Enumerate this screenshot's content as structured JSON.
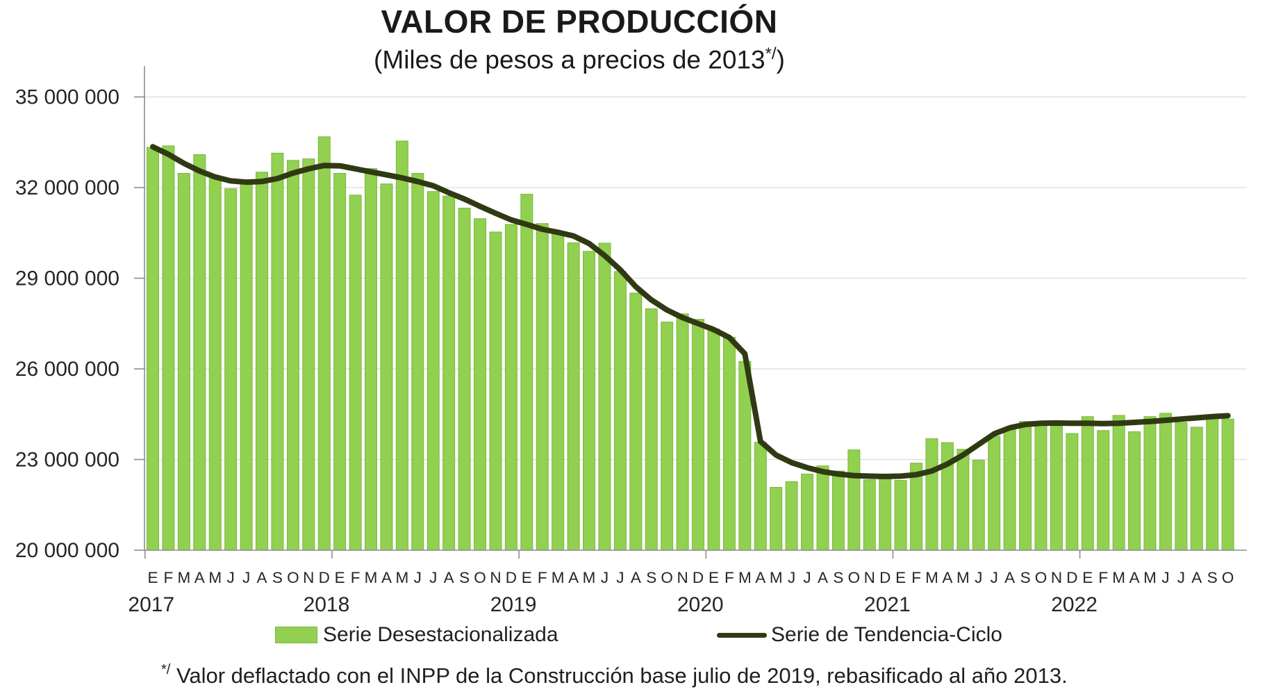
{
  "title": "VALOR DE PRODUCCIÓN",
  "subtitle": {
    "prefix": "(Miles de pesos a precios de 2013",
    "sup": "*/",
    "suffix": ")"
  },
  "footnote": {
    "sup": "*/",
    "text": " Valor deflactado con el INPP de la Construcción base julio de 2019, rebasificado al año 2013."
  },
  "colors": {
    "bar_fill": "#92d050",
    "bar_stroke": "#7ab63e",
    "trend_line": "#2f3a12",
    "gridline": "#dcdcdc",
    "axis": "#8c8c8c",
    "text": "#262626"
  },
  "chart_data": {
    "type": "bar",
    "title": "VALOR DE PRODUCCIÓN",
    "subtitle": "(Miles de pesos a precios de 2013*/)",
    "ylabel": "Miles de pesos",
    "ylim": [
      20000000,
      36030000
    ],
    "grid": true,
    "legend_position": "bottom",
    "yticks": [
      {
        "value": 35000000,
        "label": "35 000 000"
      },
      {
        "value": 32000000,
        "label": "32 000 000"
      },
      {
        "value": 29000000,
        "label": "29 000 000"
      },
      {
        "value": 26000000,
        "label": "26 000 000"
      },
      {
        "value": 23000000,
        "label": "23 000 000"
      },
      {
        "value": 20000000,
        "label": "20 000 000"
      }
    ],
    "years": [
      {
        "label": "2017",
        "months": [
          "E",
          "F",
          "M",
          "A",
          "M",
          "J",
          "J",
          "A",
          "S",
          "O",
          "N",
          "D"
        ]
      },
      {
        "label": "2018",
        "months": [
          "E",
          "F",
          "M",
          "A",
          "M",
          "J",
          "J",
          "A",
          "S",
          "O",
          "N",
          "D"
        ]
      },
      {
        "label": "2019",
        "months": [
          "E",
          "F",
          "M",
          "A",
          "M",
          "J",
          "J",
          "A",
          "S",
          "O",
          "N",
          "D"
        ]
      },
      {
        "label": "2020",
        "months": [
          "E",
          "F",
          "M",
          "A",
          "M",
          "J",
          "J",
          "A",
          "S",
          "O",
          "N",
          "D"
        ]
      },
      {
        "label": "2021",
        "months": [
          "E",
          "F",
          "M",
          "A",
          "M",
          "J",
          "J",
          "A",
          "S",
          "O",
          "N",
          "D"
        ]
      },
      {
        "label": "2022",
        "months": [
          "E",
          "F",
          "M",
          "A",
          "M",
          "J",
          "J",
          "A",
          "S",
          "O"
        ]
      }
    ],
    "series": [
      {
        "name": "Serie Desestacionalizada",
        "type": "bar",
        "color": "#92d050",
        "values": [
          33330000,
          33380000,
          32470000,
          33090000,
          32350000,
          31960000,
          32230000,
          32510000,
          33140000,
          32900000,
          32950000,
          33680000,
          32470000,
          31750000,
          32630000,
          32120000,
          33540000,
          32470000,
          31870000,
          31720000,
          31320000,
          30970000,
          30530000,
          30780000,
          31780000,
          30810000,
          30500000,
          30170000,
          29890000,
          30160000,
          29220000,
          28510000,
          27990000,
          27550000,
          27820000,
          27640000,
          27320000,
          27050000,
          26250000,
          23570000,
          22080000,
          22270000,
          22520000,
          22790000,
          22620000,
          23320000,
          22330000,
          22460000,
          22310000,
          22880000,
          23690000,
          23560000,
          23340000,
          22980000,
          23770000,
          24050000,
          24260000,
          24150000,
          24110000,
          23860000,
          24420000,
          23960000,
          24460000,
          23920000,
          24420000,
          24530000,
          24230000,
          24070000,
          24350000,
          24340000
        ]
      },
      {
        "name": "Serie de Tendencia-Ciclo",
        "type": "line",
        "color": "#2f3a12",
        "values": [
          33350000,
          33100000,
          32800000,
          32550000,
          32350000,
          32220000,
          32180000,
          32200000,
          32300000,
          32480000,
          32620000,
          32730000,
          32720000,
          32620000,
          32520000,
          32420000,
          32320000,
          32200000,
          32060000,
          31830000,
          31620000,
          31380000,
          31150000,
          30930000,
          30780000,
          30620000,
          30520000,
          30400000,
          30150000,
          29750000,
          29280000,
          28720000,
          28280000,
          27950000,
          27700000,
          27500000,
          27300000,
          27040000,
          26500000,
          23600000,
          23150000,
          22900000,
          22730000,
          22600000,
          22520000,
          22470000,
          22450000,
          22440000,
          22450000,
          22500000,
          22620000,
          22850000,
          23150000,
          23500000,
          23850000,
          24050000,
          24160000,
          24200000,
          24210000,
          24200000,
          24200000,
          24190000,
          24200000,
          24230000,
          24260000,
          24300000,
          24340000,
          24380000,
          24420000,
          24450000
        ]
      }
    ]
  }
}
